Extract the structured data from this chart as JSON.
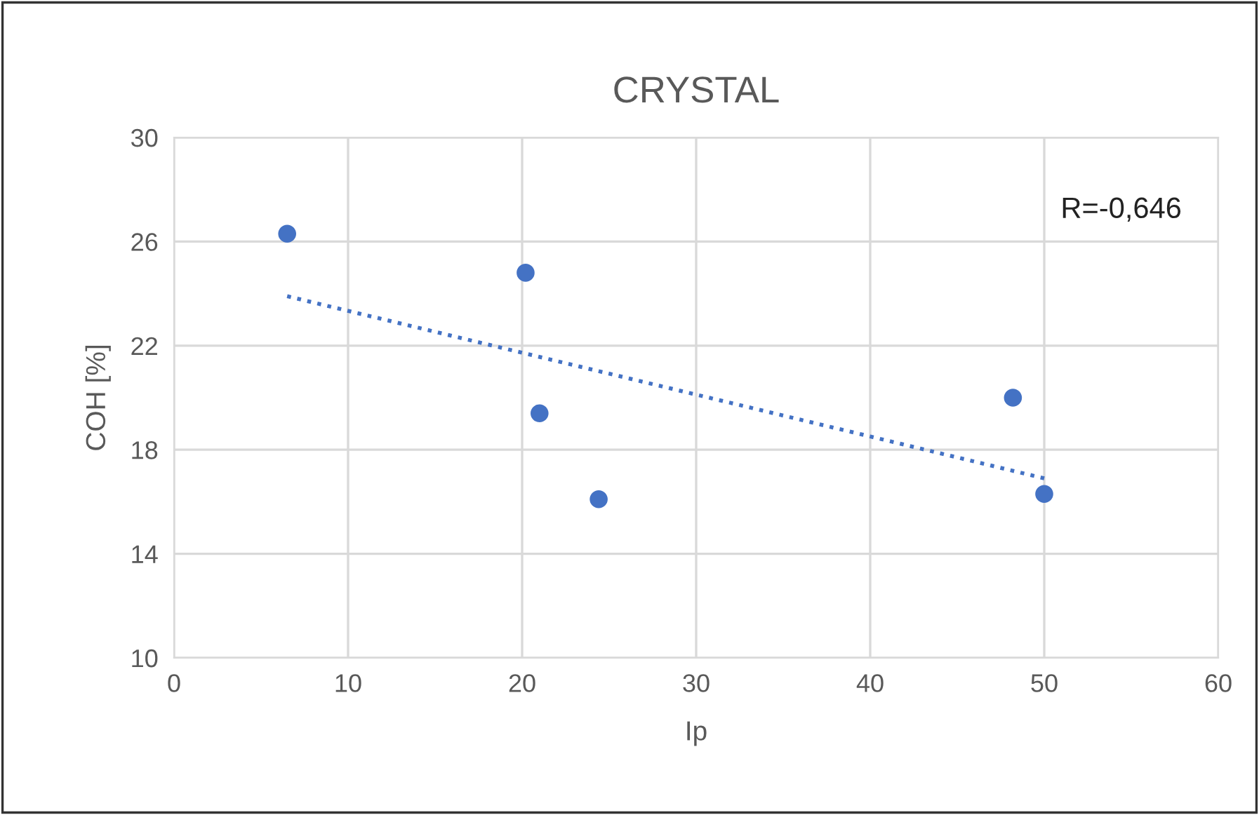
{
  "chart_data": {
    "type": "scatter",
    "title": "CRYSTAL",
    "xlabel": "Ip",
    "ylabel": "COH [%]",
    "xlim": [
      0,
      60
    ],
    "xticks": [
      0,
      10,
      20,
      30,
      40,
      50,
      60
    ],
    "ylim": [
      10,
      30
    ],
    "yticks": [
      10,
      14,
      18,
      22,
      26,
      30
    ],
    "grid": true,
    "series": [
      {
        "marker": "circle",
        "color": "#4472c4",
        "x": [
          6.5,
          20.2,
          21.0,
          24.4,
          48.2,
          50.0
        ],
        "values": [
          26.3,
          24.8,
          19.4,
          16.1,
          20.0,
          16.3
        ]
      },
      {
        "type": "line",
        "color": "#4472c4",
        "line_style": "dotted",
        "x": [
          6.5,
          50.0
        ],
        "values": [
          23.9,
          16.9
        ]
      }
    ],
    "annotations": [
      "R=-0,646"
    ]
  }
}
